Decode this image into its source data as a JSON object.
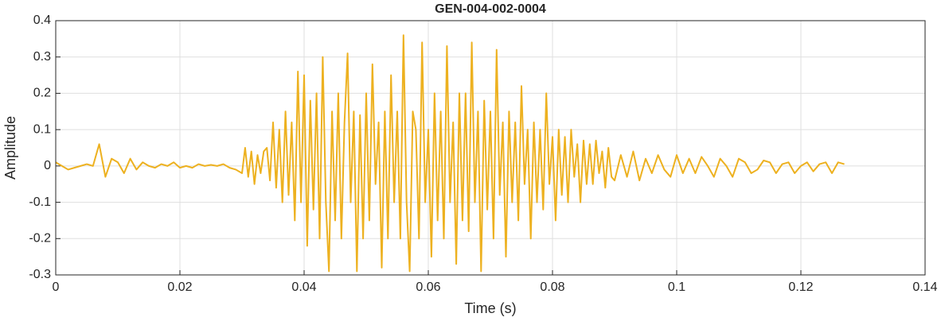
{
  "chart_data": {
    "type": "line",
    "title": "GEN-004-002-0004",
    "xlabel": "Time (s)",
    "ylabel": "Amplitude",
    "xlim": [
      0,
      0.14
    ],
    "xticks": [
      0,
      0.02,
      0.04,
      0.06,
      0.08,
      0.1,
      0.12,
      0.14
    ],
    "ylim": [
      -0.3,
      0.4
    ],
    "yticks": [
      -0.3,
      -0.2,
      -0.1,
      0,
      0.1,
      0.2,
      0.3,
      0.4
    ],
    "grid": true,
    "x": [
      0,
      0.001,
      0.002,
      0.003,
      0.004,
      0.005,
      0.006,
      0.007,
      0.008,
      0.009,
      0.01,
      0.011,
      0.012,
      0.013,
      0.014,
      0.015,
      0.016,
      0.017,
      0.018,
      0.019,
      0.02,
      0.021,
      0.022,
      0.023,
      0.024,
      0.025,
      0.026,
      0.027,
      0.028,
      0.029,
      0.03,
      0.0305,
      0.031,
      0.0315,
      0.032,
      0.0325,
      0.033,
      0.0335,
      0.034,
      0.0345,
      0.035,
      0.0355,
      0.036,
      0.0365,
      0.037,
      0.0375,
      0.038,
      0.0385,
      0.039,
      0.0395,
      0.04,
      0.0405,
      0.041,
      0.0415,
      0.042,
      0.0425,
      0.043,
      0.0435,
      0.044,
      0.0445,
      0.045,
      0.0455,
      0.046,
      0.0465,
      0.047,
      0.0475,
      0.048,
      0.0485,
      0.049,
      0.0495,
      0.05,
      0.0505,
      0.051,
      0.0515,
      0.052,
      0.0525,
      0.053,
      0.0535,
      0.054,
      0.0545,
      0.055,
      0.0555,
      0.056,
      0.0565,
      0.057,
      0.0575,
      0.058,
      0.0585,
      0.059,
      0.0595,
      0.06,
      0.0605,
      0.061,
      0.0615,
      0.062,
      0.0625,
      0.063,
      0.0635,
      0.064,
      0.0645,
      0.065,
      0.0655,
      0.066,
      0.0665,
      0.067,
      0.0675,
      0.068,
      0.0685,
      0.069,
      0.0695,
      0.07,
      0.0705,
      0.071,
      0.0715,
      0.072,
      0.0725,
      0.073,
      0.0735,
      0.074,
      0.0745,
      0.075,
      0.0755,
      0.076,
      0.0765,
      0.077,
      0.0775,
      0.078,
      0.0785,
      0.079,
      0.0795,
      0.08,
      0.0805,
      0.081,
      0.0815,
      0.082,
      0.0825,
      0.083,
      0.0835,
      0.084,
      0.0845,
      0.085,
      0.0855,
      0.086,
      0.0865,
      0.087,
      0.0875,
      0.088,
      0.0885,
      0.089,
      0.0895,
      0.09,
      0.091,
      0.092,
      0.093,
      0.094,
      0.095,
      0.096,
      0.097,
      0.098,
      0.099,
      0.1,
      0.101,
      0.102,
      0.103,
      0.104,
      0.105,
      0.106,
      0.107,
      0.108,
      0.109,
      0.11,
      0.111,
      0.112,
      0.113,
      0.114,
      0.115,
      0.116,
      0.117,
      0.118,
      0.119,
      0.12,
      0.121,
      0.122,
      0.123,
      0.124,
      0.125,
      0.126,
      0.127
    ],
    "series": [
      {
        "color": "#EDB120",
        "values": [
          0.01,
          0,
          -0.01,
          -0.005,
          0,
          0.005,
          0,
          0.06,
          -0.03,
          0.02,
          0.01,
          -0.02,
          0.02,
          -0.01,
          0.01,
          0,
          -0.005,
          0.005,
          0,
          0.01,
          -0.005,
          0,
          -0.005,
          0.005,
          0,
          0.003,
          0,
          0.005,
          -0.005,
          -0.01,
          -0.02,
          0.05,
          -0.03,
          0.04,
          -0.05,
          0.03,
          -0.02,
          0.04,
          0.05,
          -0.04,
          0.12,
          -0.06,
          0.1,
          -0.1,
          0.15,
          -0.08,
          0.12,
          -0.15,
          0.26,
          -0.1,
          0.25,
          -0.22,
          0.18,
          -0.12,
          0.2,
          -0.2,
          0.3,
          -0.1,
          -0.29,
          0.15,
          -0.15,
          0.2,
          -0.2,
          0.12,
          0.31,
          -0.1,
          0.15,
          -0.29,
          0.14,
          -0.2,
          0.2,
          -0.15,
          0.28,
          -0.05,
          0.12,
          -0.28,
          0.15,
          -0.2,
          0.25,
          -0.1,
          0.15,
          -0.2,
          0.36,
          -0.1,
          -0.29,
          0.15,
          0.1,
          -0.2,
          0.34,
          -0.1,
          0.1,
          -0.25,
          0.2,
          -0.15,
          0.15,
          -0.2,
          0.33,
          -0.1,
          0.12,
          -0.27,
          0.2,
          -0.15,
          0.2,
          -0.18,
          0.34,
          -0.1,
          0.15,
          -0.29,
          0.18,
          -0.12,
          0.15,
          -0.2,
          0.32,
          -0.08,
          0.12,
          -0.25,
          0.15,
          -0.1,
          0.12,
          -0.15,
          0.22,
          -0.05,
          0.1,
          -0.2,
          0.12,
          -0.1,
          0.1,
          -0.12,
          0.2,
          -0.05,
          0.08,
          -0.15,
          0.1,
          -0.08,
          0.08,
          -0.1,
          0.1,
          -0.03,
          0.06,
          -0.1,
          0.07,
          -0.05,
          0.06,
          -0.05,
          0.07,
          -0.02,
          0.04,
          -0.06,
          0.05,
          -0.03,
          -0.04,
          0.03,
          -0.03,
          0.04,
          -0.04,
          0.02,
          -0.02,
          0.03,
          -0.01,
          -0.03,
          0.03,
          -0.02,
          0.02,
          -0.02,
          0.025,
          0,
          -0.03,
          0.02,
          0,
          -0.03,
          0.02,
          0.01,
          -0.02,
          -0.01,
          0.015,
          0.01,
          -0.02,
          0.005,
          0.01,
          -0.02,
          0,
          0.01,
          -0.015,
          0.005,
          0.01,
          -0.02,
          0.01,
          0.005
        ]
      }
    ]
  }
}
